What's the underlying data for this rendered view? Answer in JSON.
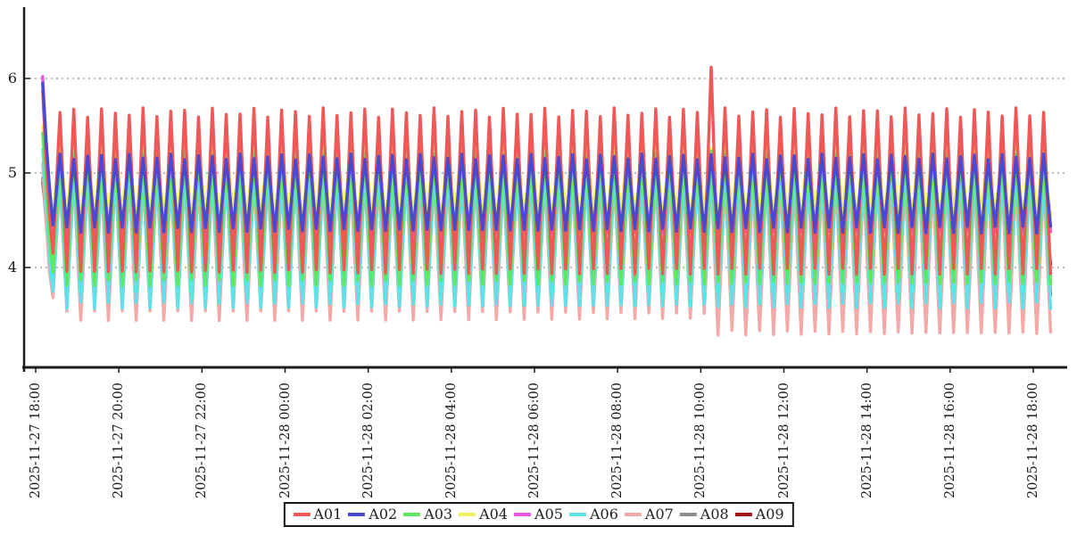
{
  "figure": {
    "background": "#ffffff"
  },
  "axes": {
    "axis_color": "#1c1c1c",
    "grid_color": "#777777",
    "y_ticks": [
      {
        "label": "6",
        "value": 6
      },
      {
        "label": "5",
        "value": 5
      },
      {
        "label": "4",
        "value": 4
      }
    ],
    "x_ticks": [
      {
        "label": "2025-11-27 18:00",
        "t_min": 0
      },
      {
        "label": "2025-11-27 20:00",
        "t_min": 120
      },
      {
        "label": "2025-11-27 22:00",
        "t_min": 240
      },
      {
        "label": "2025-11-28 00:00",
        "t_min": 360
      },
      {
        "label": "2025-11-28 02:00",
        "t_min": 480
      },
      {
        "label": "2025-11-28 04:00",
        "t_min": 600
      },
      {
        "label": "2025-11-28 06:00",
        "t_min": 720
      },
      {
        "label": "2025-11-28 08:00",
        "t_min": 840
      },
      {
        "label": "2025-11-28 10:00",
        "t_min": 960
      },
      {
        "label": "2025-11-28 12:00",
        "t_min": 1080
      },
      {
        "label": "2025-11-28 14:00",
        "t_min": 1200
      },
      {
        "label": "2025-11-28 16:00",
        "t_min": 1320
      },
      {
        "label": "2025-11-28 18:00",
        "t_min": 1440
      }
    ]
  },
  "legend": {
    "items": [
      {
        "label": "A01",
        "color": "#f05858"
      },
      {
        "label": "A02",
        "color": "#4b49cf"
      },
      {
        "label": "A03",
        "color": "#5fe85f"
      },
      {
        "label": "A04",
        "color": "#efef60"
      },
      {
        "label": "A05",
        "color": "#e956e9"
      },
      {
        "label": "A06",
        "color": "#5de2ea"
      },
      {
        "label": "A07",
        "color": "#f4a9a9"
      },
      {
        "label": "A08",
        "color": "#8c8c8c"
      },
      {
        "label": "A09",
        "color": "#a31215"
      }
    ]
  },
  "chart_data": {
    "type": "line",
    "title": "",
    "x_start": "2025-11-27 18:00",
    "x_end": "2025-11-28 18:00",
    "x_range_minutes_from_start": [
      10,
      1465
    ],
    "sample_step_minutes": 5,
    "period_minutes": 20,
    "peak_phase_minute": 35,
    "ylim": [
      2.95,
      6.78
    ],
    "y_gridlines": [
      4,
      5,
      6
    ],
    "grid": "dashed-horizontal",
    "legend_position": "bottom-center",
    "draw_order": [
      "A09",
      "A08",
      "A07",
      "A06",
      "A04",
      "A05",
      "A03",
      "A01",
      "A02"
    ],
    "series": [
      {
        "name": "A01",
        "color": "#f05858",
        "peak": 5.64,
        "trough": 3.96,
        "peak_jitter": 0.05,
        "trough_jitter": 0.03,
        "spike": {
          "t_min": 975,
          "value": 6.12
        },
        "start": [
          [
            10,
            5.87
          ],
          [
            15,
            5.15
          ],
          [
            20,
            4.55
          ],
          [
            25,
            4.15
          ],
          [
            30,
            4.9
          ]
        ]
      },
      {
        "name": "A02",
        "color": "#4b49cf",
        "peak": 5.17,
        "trough": 4.4,
        "peak_jitter": 0.03,
        "trough_jitter": 0.04,
        "start": [
          [
            10,
            5.95
          ],
          [
            15,
            5.35
          ],
          [
            20,
            4.85
          ],
          [
            25,
            4.45
          ],
          [
            30,
            4.8
          ]
        ]
      },
      {
        "name": "A03",
        "color": "#5fe85f",
        "peak": 5.22,
        "trough": 3.84,
        "peak_jitter": 0.03,
        "trough_jitter": 0.03,
        "start": [
          [
            10,
            5.42
          ],
          [
            15,
            4.9
          ],
          [
            20,
            4.3
          ],
          [
            25,
            3.95
          ],
          [
            30,
            4.6
          ]
        ]
      },
      {
        "name": "A04",
        "color": "#efef60",
        "peak": 5.28,
        "trough": 4.55,
        "peak_jitter": 0.02,
        "trough_jitter": 0.03,
        "start": [
          [
            10,
            5.5
          ],
          [
            15,
            5.0
          ],
          [
            20,
            4.7
          ],
          [
            25,
            4.55
          ],
          [
            30,
            4.95
          ]
        ]
      },
      {
        "name": "A05",
        "color": "#e956e9",
        "peak": 5.08,
        "trough": 4.33,
        "peak_jitter": 0.03,
        "trough_jitter": 0.05,
        "start": [
          [
            10,
            6.02
          ],
          [
            15,
            5.35
          ],
          [
            20,
            4.8
          ],
          [
            25,
            4.4
          ],
          [
            30,
            4.75
          ]
        ]
      },
      {
        "name": "A06",
        "color": "#5de2ea",
        "peak": 5.02,
        "trough": 3.6,
        "peak_jitter": 0.03,
        "trough_jitter": 0.04,
        "start": [
          [
            10,
            5.25
          ],
          [
            15,
            4.7
          ],
          [
            20,
            4.1
          ],
          [
            25,
            3.75
          ],
          [
            30,
            4.4
          ]
        ]
      },
      {
        "name": "A07",
        "color": "#f4a9a9",
        "peak": 4.93,
        "trough": 3.49,
        "peak_jitter": 0.03,
        "trough_jitter": 0.05,
        "trough_after": {
          "t_min": 972,
          "trough": 3.31
        },
        "start": [
          [
            10,
            5.1
          ],
          [
            15,
            4.5
          ],
          [
            20,
            3.95
          ],
          [
            25,
            3.68
          ],
          [
            30,
            4.3
          ]
        ]
      },
      {
        "name": "A08",
        "color": "#8c8c8c",
        "peak": 4.95,
        "trough": 3.68,
        "peak_jitter": 0.02,
        "trough_jitter": 0.05,
        "start": [
          [
            10,
            4.95
          ],
          [
            15,
            4.5
          ],
          [
            20,
            4.1
          ],
          [
            25,
            3.82
          ],
          [
            30,
            4.35
          ]
        ]
      },
      {
        "name": "A09",
        "color": "#a31215",
        "peak": 4.88,
        "trough": 4.06,
        "peak_jitter": 0.02,
        "trough_jitter": 0.03,
        "start": [
          [
            10,
            4.9
          ],
          [
            15,
            4.6
          ],
          [
            20,
            4.3
          ],
          [
            25,
            4.1
          ],
          [
            30,
            4.5
          ]
        ]
      }
    ]
  }
}
